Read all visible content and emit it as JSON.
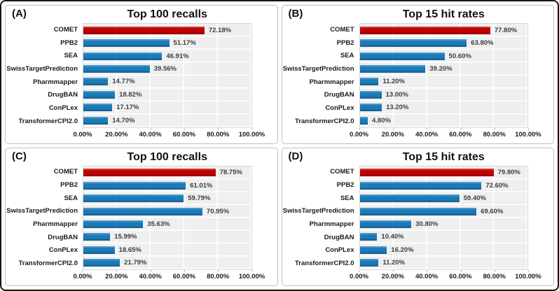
{
  "colors": {
    "highlight_bar": "#C00000",
    "default_bar": "#1B7AB8",
    "plot_background": "#EFEFEF",
    "gridline": "#FFFFFF",
    "panel_border": "#BFBFBF",
    "figure_border": "#151515"
  },
  "chart_data": [
    {
      "type": "bar",
      "orientation": "horizontal",
      "panel_label": "(A)",
      "title": "Top 100 recalls",
      "categories": [
        "COMET",
        "PPB2",
        "SEA",
        "SwissTargetPrediction",
        "Pharmmapper",
        "DrugBAN",
        "ConPLex",
        "TransformerCPI2.0"
      ],
      "values": [
        72.18,
        51.17,
        46.91,
        39.56,
        14.77,
        18.82,
        17.17,
        14.7
      ],
      "value_labels": [
        "72.18%",
        "51.17%",
        "46.91%",
        "39.56%",
        "14.77%",
        "18.82%",
        "17.17%",
        "14.70%"
      ],
      "highlight_index": 0,
      "xlim": [
        0,
        100
      ],
      "x_ticks": [
        "0.00%",
        "20.00%",
        "40.00%",
        "60.00%",
        "80.00%",
        "100.00%"
      ],
      "grid": true,
      "legend": false
    },
    {
      "type": "bar",
      "orientation": "horizontal",
      "panel_label": "(B)",
      "title": "Top 15 hit rates",
      "categories": [
        "COMET",
        "PPB2",
        "SEA",
        "SwissTargetPrediction",
        "Pharmmapper",
        "DrugBAN",
        "ConPLex",
        "TransformerCPI2.0"
      ],
      "values": [
        77.8,
        63.8,
        50.6,
        39.2,
        11.2,
        13.0,
        13.2,
        4.8
      ],
      "value_labels": [
        "77.80%",
        "63.80%",
        "50.60%",
        "39.20%",
        "11.20%",
        "13.00%",
        "13.20%",
        "4.80%"
      ],
      "highlight_index": 0,
      "xlim": [
        0,
        100
      ],
      "x_ticks": [
        "0.00%",
        "20.00%",
        "40.00%",
        "60.00%",
        "80.00%",
        "100.00%"
      ],
      "grid": true,
      "legend": false
    },
    {
      "type": "bar",
      "orientation": "horizontal",
      "panel_label": "(C)",
      "title": "Top 100 recalls",
      "categories": [
        "COMET",
        "PPB2",
        "SEA",
        "SwissTargetPrediction",
        "Pharmmapper",
        "DrugBAN",
        "ConPLex",
        "TransformerCPI2.0"
      ],
      "values": [
        78.75,
        61.01,
        59.79,
        70.95,
        35.63,
        15.99,
        18.65,
        21.79
      ],
      "value_labels": [
        "78.75%",
        "61.01%",
        "59.79%",
        "70.95%",
        "35.63%",
        "15.99%",
        "18.65%",
        "21.79%"
      ],
      "highlight_index": 0,
      "xlim": [
        0,
        100
      ],
      "x_ticks": [
        "0.00%",
        "20.00%",
        "40.00%",
        "60.00%",
        "80.00%",
        "100.00%"
      ],
      "grid": true,
      "legend": false
    },
    {
      "type": "bar",
      "orientation": "horizontal",
      "panel_label": "(D)",
      "title": "Top 15 hit rates",
      "categories": [
        "COMET",
        "PPB2",
        "SEA",
        "SwissTargetPrediction",
        "Pharmmapper",
        "DrugBAN",
        "ConPLex",
        "TransformerCPI2.0"
      ],
      "values": [
        79.8,
        72.6,
        59.4,
        69.6,
        30.8,
        10.4,
        16.2,
        11.2
      ],
      "value_labels": [
        "79.80%",
        "72.60%",
        "59.40%",
        "69.60%",
        "30.80%",
        "10.40%",
        "16.20%",
        "11.20%"
      ],
      "highlight_index": 0,
      "xlim": [
        0,
        100
      ],
      "x_ticks": [
        "0.00%",
        "20.00%",
        "40.00%",
        "60.00%",
        "80.00%",
        "100.00%"
      ],
      "grid": true,
      "legend": false
    }
  ]
}
